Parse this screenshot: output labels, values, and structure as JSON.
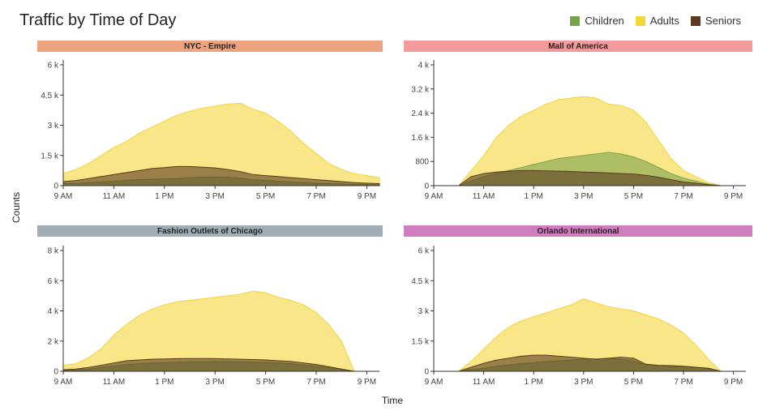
{
  "title": "Traffic by Time of Day",
  "legend": [
    {
      "label": "Children",
      "color": "#7aa34e"
    },
    {
      "label": "Adults",
      "color": "#f5d638"
    },
    {
      "label": "Seniors",
      "color": "#5a3b1f"
    }
  ],
  "colors": {
    "Children": "#7aa34e",
    "Adults": "#f5d638",
    "Seniors": "#5a3b1f"
  },
  "chart_data": {
    "type": "area",
    "title": "Traffic by Time of Day",
    "xlabel": "Time",
    "ylabel": "Counts",
    "x_tick_labels": [
      "9 AM",
      "11 AM",
      "1 PM",
      "3 PM",
      "5 PM",
      "7 PM",
      "9 PM"
    ],
    "x_hours": [
      9,
      9.5,
      10,
      10.5,
      11,
      11.5,
      12,
      12.5,
      13,
      13.5,
      14,
      14.5,
      15,
      15.5,
      16,
      16.5,
      17,
      17.5,
      18,
      18.5,
      19,
      19.5,
      20,
      20.5,
      21,
      21.5
    ],
    "legend_position": "top-right",
    "grid": false,
    "facets": [
      {
        "name": "NYC - Empire",
        "strip_color": "#eca37e",
        "ylim": [
          0,
          6000
        ],
        "y_ticks": [
          0,
          1500,
          3000,
          4500,
          6000
        ],
        "y_tick_labels": [
          "0",
          "1.5 k",
          "3 k",
          "4.5 k",
          "6 k"
        ],
        "series": [
          {
            "name": "Adults",
            "values": [
              600,
              800,
              1100,
              1500,
              1900,
              2200,
              2600,
              2900,
              3200,
              3500,
              3700,
              3850,
              3950,
              4050,
              4100,
              3800,
              3600,
              3200,
              2700,
              2100,
              1600,
              1100,
              800,
              600,
              500,
              400
            ]
          },
          {
            "name": "Seniors",
            "values": [
              200,
              250,
              350,
              450,
              550,
              650,
              750,
              850,
              900,
              950,
              950,
              920,
              880,
              800,
              700,
              550,
              500,
              450,
              400,
              350,
              300,
              250,
              200,
              150,
              120,
              100
            ]
          },
          {
            "name": "Children",
            "values": [
              100,
              110,
              150,
              180,
              220,
              260,
              300,
              320,
              340,
              360,
              400,
              420,
              430,
              420,
              380,
              300,
              260,
              220,
              180,
              150,
              120,
              100,
              80,
              60,
              50,
              40
            ]
          }
        ]
      },
      {
        "name": "Mall of America",
        "strip_color": "#f29a9c",
        "ylim": [
          0,
          4000
        ],
        "y_ticks": [
          0,
          800,
          1600,
          2400,
          3200,
          4000
        ],
        "y_tick_labels": [
          "0",
          "800",
          "1.6 k",
          "2.4 k",
          "3.2 k",
          "4 k"
        ],
        "series": [
          {
            "name": "Adults",
            "values": [
              0,
              0,
              0,
              500,
              1000,
              1600,
              2000,
              2300,
              2500,
              2700,
              2850,
              2900,
              2950,
              2900,
              2700,
              2650,
              2500,
              2100,
              1500,
              900,
              500,
              300,
              100,
              0,
              0,
              0
            ]
          },
          {
            "name": "Children",
            "values": [
              0,
              0,
              0,
              150,
              300,
              400,
              500,
              600,
              700,
              800,
              900,
              950,
              1000,
              1050,
              1100,
              1050,
              950,
              800,
              600,
              400,
              250,
              150,
              50,
              0,
              0,
              0
            ]
          },
          {
            "name": "Seniors",
            "values": [
              0,
              0,
              0,
              300,
              400,
              450,
              480,
              500,
              500,
              490,
              480,
              470,
              450,
              440,
              420,
              400,
              380,
              340,
              280,
              200,
              120,
              80,
              30,
              0,
              0,
              0
            ]
          }
        ]
      },
      {
        "name": "Fashion Outlets of Chicago",
        "strip_color": "#9faeb5",
        "ylim": [
          0,
          8000
        ],
        "y_ticks": [
          0,
          2000,
          4000,
          6000,
          8000
        ],
        "y_tick_labels": [
          "0",
          "2 k",
          "4 k",
          "6 k",
          "8 k"
        ],
        "series": [
          {
            "name": "Adults",
            "values": [
              400,
              500,
              900,
              1500,
              2400,
              3100,
              3700,
              4100,
              4400,
              4600,
              4700,
              4800,
              4900,
              5000,
              5100,
              5300,
              5200,
              4900,
              4700,
              4400,
              3900,
              3100,
              2000,
              0,
              0,
              0
            ]
          },
          {
            "name": "Seniors",
            "values": [
              100,
              150,
              250,
              400,
              550,
              700,
              750,
              800,
              820,
              840,
              850,
              850,
              840,
              820,
              800,
              780,
              750,
              700,
              650,
              550,
              450,
              300,
              150,
              0,
              0,
              0
            ]
          },
          {
            "name": "Children",
            "values": [
              50,
              80,
              150,
              250,
              350,
              450,
              500,
              550,
              580,
              600,
              620,
              640,
              650,
              640,
              620,
              600,
              580,
              550,
              500,
              420,
              330,
              230,
              120,
              0,
              0,
              0
            ]
          }
        ]
      },
      {
        "name": "Orlando International",
        "strip_color": "#d07dc0",
        "ylim": [
          0,
          6000
        ],
        "y_ticks": [
          0,
          1500,
          3000,
          4500,
          6000
        ],
        "y_tick_labels": [
          "0",
          "1.5 k",
          "3 k",
          "4.5 k",
          "6 k"
        ],
        "series": [
          {
            "name": "Adults",
            "values": [
              0,
              0,
              0,
              500,
              1100,
              1700,
              2200,
              2500,
              2700,
              2900,
              3100,
              3300,
              3600,
              3400,
              3200,
              3100,
              3000,
              2800,
              2600,
              2300,
              1900,
              1300,
              600,
              0,
              0,
              0
            ]
          },
          {
            "name": "Seniors",
            "values": [
              0,
              0,
              0,
              200,
              400,
              550,
              650,
              750,
              800,
              800,
              750,
              700,
              650,
              600,
              650,
              700,
              650,
              350,
              300,
              280,
              250,
              200,
              150,
              0,
              0,
              0
            ]
          },
          {
            "name": "Children",
            "values": [
              0,
              0,
              0,
              80,
              150,
              250,
              320,
              380,
              430,
              480,
              520,
              560,
              600,
              620,
              640,
              600,
              500,
              320,
              280,
              250,
              220,
              180,
              120,
              0,
              0,
              0
            ]
          }
        ]
      }
    ]
  }
}
